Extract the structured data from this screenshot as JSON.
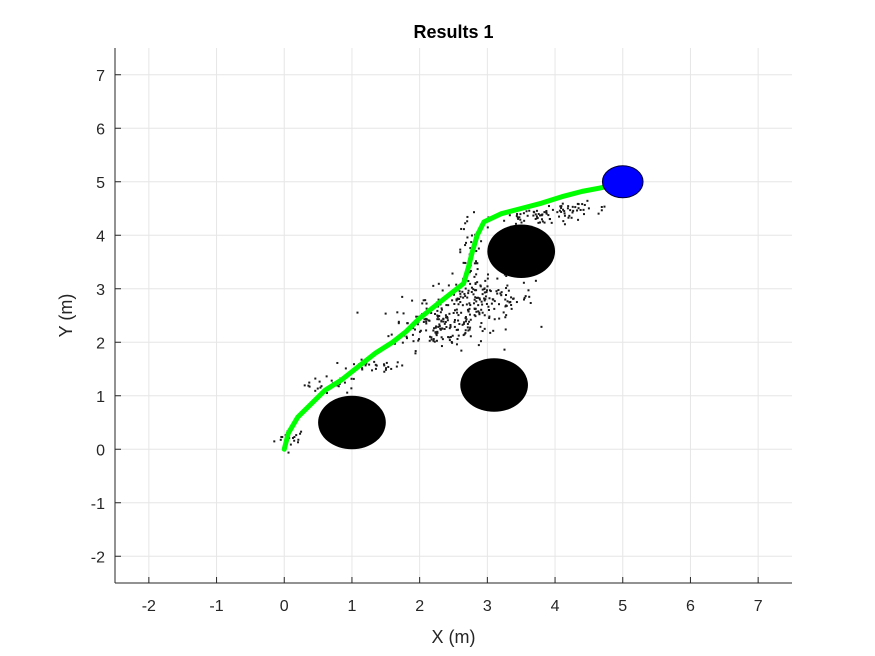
{
  "chart_data": {
    "type": "scatter",
    "title": "Results 1",
    "xlabel": "X (m)",
    "ylabel": "Y (m)",
    "xlim": [
      -2.5,
      7.5
    ],
    "ylim": [
      -2.5,
      7.5
    ],
    "xticks": [
      -2,
      -1,
      0,
      1,
      2,
      3,
      4,
      5,
      6,
      7
    ],
    "yticks": [
      -2,
      -1,
      0,
      1,
      2,
      3,
      4,
      5,
      6,
      7
    ],
    "grid": true,
    "colors": {
      "path": "#00ff00",
      "goal": "#0000ff",
      "obstacle": "#000000",
      "samples": "#1a1a1a",
      "grid": "#e6e6e6",
      "axis": "#262626"
    },
    "path": {
      "x": [
        0.0,
        0.06,
        0.2,
        0.4,
        0.6,
        0.85,
        1.1,
        1.35,
        1.6,
        1.8,
        2.0,
        2.2,
        2.45,
        2.65,
        2.72,
        2.78,
        2.85,
        2.95,
        3.2,
        3.5,
        3.8,
        4.1,
        4.4,
        4.65,
        4.8
      ],
      "y": [
        0.0,
        0.3,
        0.6,
        0.85,
        1.1,
        1.3,
        1.55,
        1.8,
        2.0,
        2.2,
        2.45,
        2.65,
        2.9,
        3.1,
        3.4,
        3.7,
        4.0,
        4.25,
        4.4,
        4.5,
        4.6,
        4.72,
        4.82,
        4.88,
        4.92
      ]
    },
    "obstacles": [
      {
        "x": 1.0,
        "y": 0.5,
        "rx": 0.5,
        "ry": 0.5
      },
      {
        "x": 3.1,
        "y": 1.2,
        "rx": 0.5,
        "ry": 0.5
      },
      {
        "x": 3.5,
        "y": 3.7,
        "rx": 0.5,
        "ry": 0.5
      }
    ],
    "goal": {
      "x": 5.0,
      "y": 5.0,
      "rx": 0.3,
      "ry": 0.3
    },
    "sample_regions": [
      {
        "cx": 0.1,
        "cy": 0.2,
        "sx": 0.12,
        "sy": 0.1,
        "n": 20
      },
      {
        "cx": 0.7,
        "cy": 1.2,
        "sx": 0.2,
        "sy": 0.08,
        "n": 25
      },
      {
        "cx": 1.3,
        "cy": 1.55,
        "sx": 0.25,
        "sy": 0.05,
        "n": 30
      },
      {
        "cx": 2.3,
        "cy": 2.3,
        "sx": 0.35,
        "sy": 0.22,
        "n": 150
      },
      {
        "cx": 2.9,
        "cy": 2.8,
        "sx": 0.4,
        "sy": 0.2,
        "n": 160
      },
      {
        "cx": 2.75,
        "cy": 3.6,
        "sx": 0.1,
        "sy": 0.35,
        "n": 40
      },
      {
        "cx": 3.8,
        "cy": 4.35,
        "sx": 0.35,
        "sy": 0.08,
        "n": 60
      },
      {
        "cx": 4.3,
        "cy": 4.5,
        "sx": 0.3,
        "sy": 0.06,
        "n": 30
      }
    ]
  }
}
